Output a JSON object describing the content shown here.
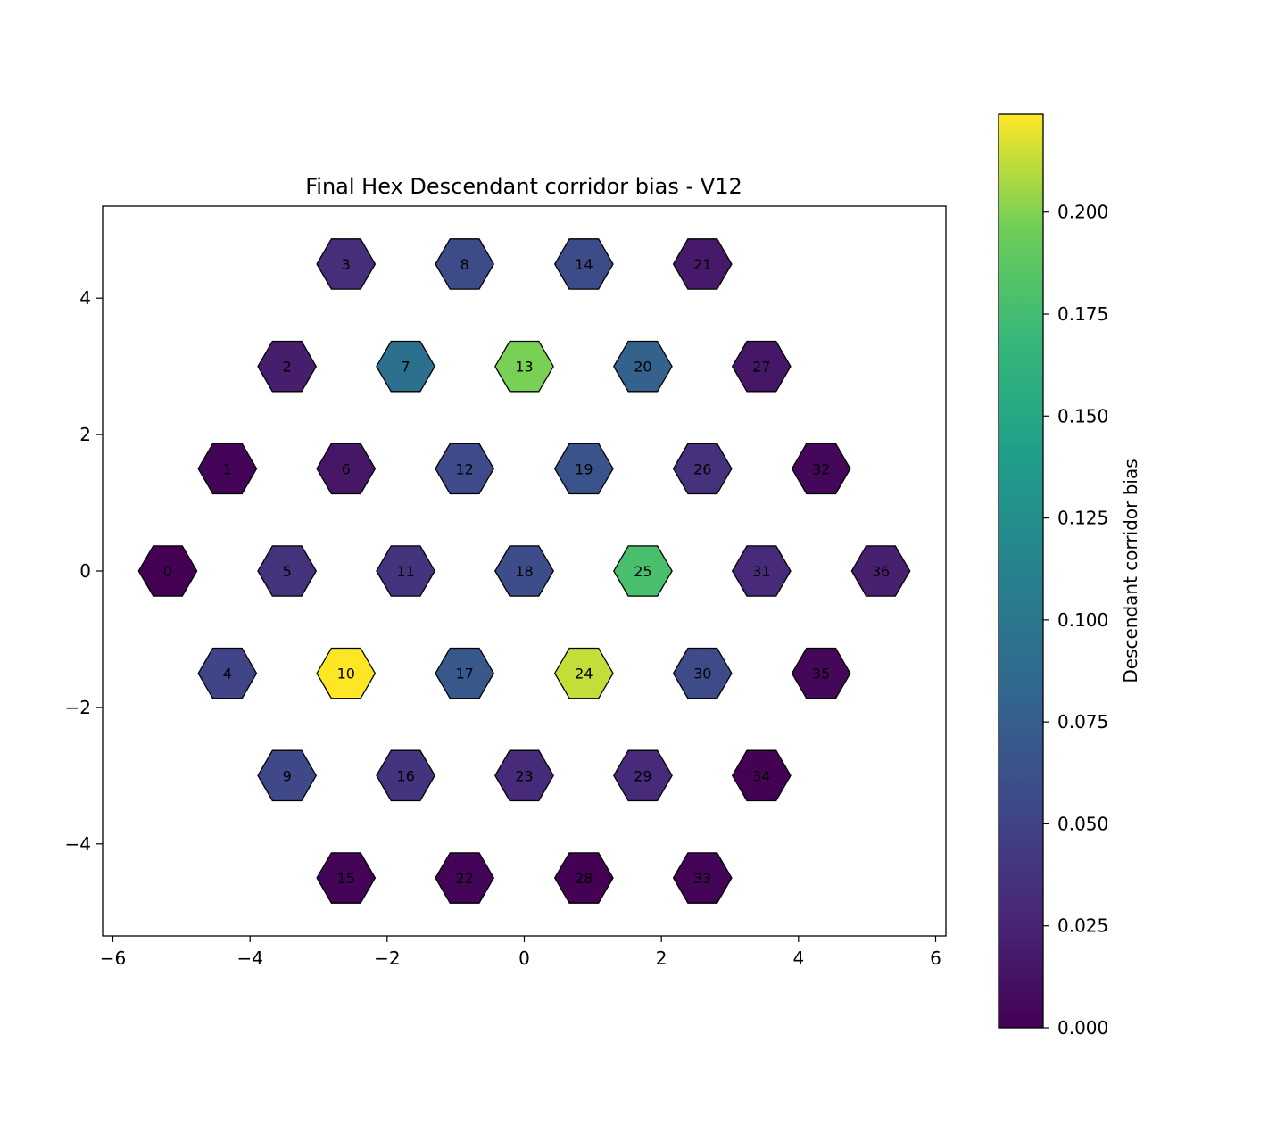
{
  "chart_data": {
    "type": "heatmap",
    "title": "Final Hex Descendant corridor bias - V12",
    "xlabel": "",
    "ylabel": "",
    "xlim": [
      -6.15,
      6.15
    ],
    "ylim": [
      -5.35,
      5.35
    ],
    "xticks": [
      -6,
      -4,
      -2,
      0,
      2,
      4,
      6
    ],
    "xtick_labels": [
      "−6",
      "−4",
      "−2",
      "0",
      "2",
      "4",
      "6"
    ],
    "yticks": [
      -4,
      -2,
      0,
      2,
      4
    ],
    "ytick_labels": [
      "−4",
      "−2",
      "0",
      "2",
      "4"
    ],
    "grid": false,
    "colormap": "viridis",
    "colorbar": {
      "label": "Descendant corridor bias",
      "range": [
        0,
        0.224
      ],
      "ticks": [
        0,
        0.025,
        0.05,
        0.075,
        0.1,
        0.125,
        0.15,
        0.175,
        0.2
      ],
      "tick_labels": [
        "0.000",
        "0.025",
        "0.050",
        "0.075",
        "0.100",
        "0.125",
        "0.150",
        "0.175",
        "0.200"
      ]
    },
    "cells": [
      {
        "id": "0",
        "x": -5.2,
        "y": 0,
        "value": 0.0
      },
      {
        "id": "1",
        "x": -4.33,
        "y": 1.5,
        "value": 0.003
      },
      {
        "id": "2",
        "x": -3.46,
        "y": 3.0,
        "value": 0.02
      },
      {
        "id": "3",
        "x": -2.6,
        "y": 4.5,
        "value": 0.033
      },
      {
        "id": "4",
        "x": -4.33,
        "y": -1.5,
        "value": 0.052
      },
      {
        "id": "5",
        "x": -3.46,
        "y": 0,
        "value": 0.036
      },
      {
        "id": "6",
        "x": -2.6,
        "y": 1.5,
        "value": 0.015
      },
      {
        "id": "7",
        "x": -1.73,
        "y": 3.0,
        "value": 0.093
      },
      {
        "id": "8",
        "x": -0.87,
        "y": 4.5,
        "value": 0.058
      },
      {
        "id": "9",
        "x": -3.46,
        "y": -3.0,
        "value": 0.054
      },
      {
        "id": "10",
        "x": -2.6,
        "y": -1.5,
        "value": 0.224
      },
      {
        "id": "11",
        "x": -1.73,
        "y": 0,
        "value": 0.038
      },
      {
        "id": "12",
        "x": -0.87,
        "y": 1.5,
        "value": 0.056
      },
      {
        "id": "13",
        "x": 0,
        "y": 3.0,
        "value": 0.198
      },
      {
        "id": "14",
        "x": 0.87,
        "y": 4.5,
        "value": 0.058
      },
      {
        "id": "15",
        "x": -2.6,
        "y": -4.5,
        "value": 0.002
      },
      {
        "id": "16",
        "x": -1.73,
        "y": -3.0,
        "value": 0.038
      },
      {
        "id": "17",
        "x": -0.87,
        "y": -1.5,
        "value": 0.068
      },
      {
        "id": "18",
        "x": 0,
        "y": 0,
        "value": 0.059
      },
      {
        "id": "19",
        "x": 0.87,
        "y": 1.5,
        "value": 0.065
      },
      {
        "id": "20",
        "x": 1.73,
        "y": 3.0,
        "value": 0.078
      },
      {
        "id": "21",
        "x": 2.6,
        "y": 4.5,
        "value": 0.017
      },
      {
        "id": "22",
        "x": -0.87,
        "y": -4.5,
        "value": 0.002
      },
      {
        "id": "23",
        "x": 0,
        "y": -3.0,
        "value": 0.03
      },
      {
        "id": "24",
        "x": 0.87,
        "y": -1.5,
        "value": 0.213
      },
      {
        "id": "25",
        "x": 1.73,
        "y": 0,
        "value": 0.178
      },
      {
        "id": "26",
        "x": 2.6,
        "y": 1.5,
        "value": 0.035
      },
      {
        "id": "27",
        "x": 3.46,
        "y": 3.0,
        "value": 0.015
      },
      {
        "id": "28",
        "x": 0.87,
        "y": -4.5,
        "value": 0.001
      },
      {
        "id": "29",
        "x": 1.73,
        "y": -3.0,
        "value": 0.03
      },
      {
        "id": "30",
        "x": 2.6,
        "y": -1.5,
        "value": 0.057
      },
      {
        "id": "31",
        "x": 3.46,
        "y": 0,
        "value": 0.03
      },
      {
        "id": "32",
        "x": 4.33,
        "y": 1.5,
        "value": 0.004
      },
      {
        "id": "33",
        "x": 2.6,
        "y": -4.5,
        "value": 0.002
      },
      {
        "id": "34",
        "x": 3.46,
        "y": -3.0,
        "value": 0.001
      },
      {
        "id": "35",
        "x": 4.33,
        "y": -1.5,
        "value": 0.004
      },
      {
        "id": "36",
        "x": 5.2,
        "y": 0,
        "value": 0.022
      }
    ]
  }
}
